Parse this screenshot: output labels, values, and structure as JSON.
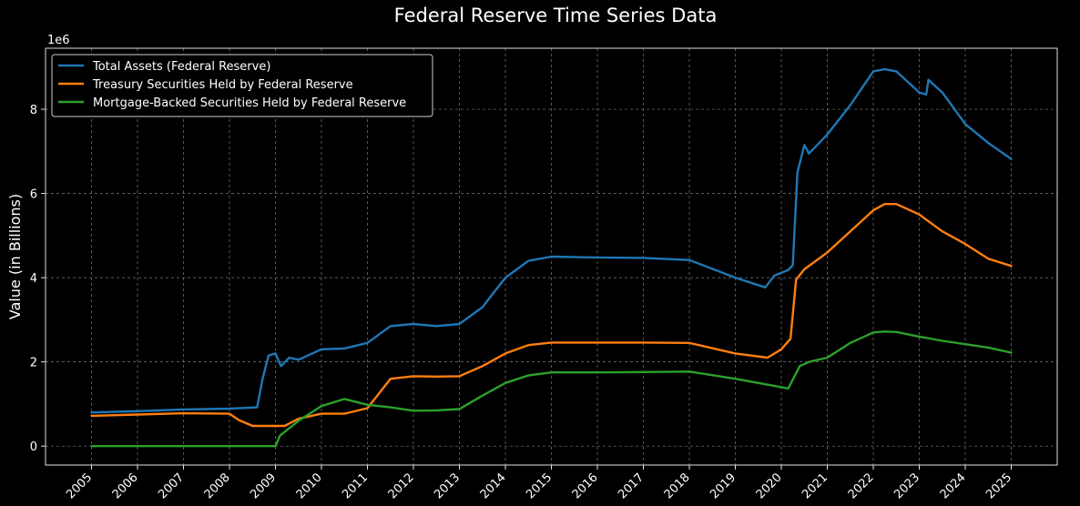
{
  "chart_data": {
    "type": "line",
    "title": "Federal Reserve Time Series Data",
    "xlabel": "",
    "ylabel": "Value (in Billions)",
    "y_multiplier_label": "1e6",
    "xlim": [
      2004.0,
      2026.0
    ],
    "ylim": [
      -0.45,
      9.45
    ],
    "x_ticks": [
      "2005",
      "2006",
      "2007",
      "2008",
      "2009",
      "2010",
      "2011",
      "2012",
      "2013",
      "2014",
      "2015",
      "2016",
      "2017",
      "2018",
      "2019",
      "2020",
      "2021",
      "2022",
      "2023",
      "2024",
      "2025"
    ],
    "y_ticks": [
      0,
      2,
      4,
      6,
      8
    ],
    "y_tick_labels": [
      "0",
      "2",
      "4",
      "6",
      "8"
    ],
    "grid": true,
    "legend_position": "top-left",
    "series": [
      {
        "name": "Total Assets (Federal Reserve)",
        "color": "#1f77b4",
        "points": [
          [
            2005.0,
            0.8
          ],
          [
            2006.0,
            0.83
          ],
          [
            2007.0,
            0.87
          ],
          [
            2008.0,
            0.89
          ],
          [
            2008.6,
            0.92
          ],
          [
            2008.72,
            1.6
          ],
          [
            2008.85,
            2.15
          ],
          [
            2009.0,
            2.2
          ],
          [
            2009.12,
            1.9
          ],
          [
            2009.3,
            2.1
          ],
          [
            2009.5,
            2.05
          ],
          [
            2009.7,
            2.15
          ],
          [
            2010.0,
            2.3
          ],
          [
            2010.5,
            2.32
          ],
          [
            2011.0,
            2.45
          ],
          [
            2011.5,
            2.85
          ],
          [
            2012.0,
            2.9
          ],
          [
            2012.5,
            2.85
          ],
          [
            2013.0,
            2.9
          ],
          [
            2013.5,
            3.3
          ],
          [
            2014.0,
            4.0
          ],
          [
            2014.5,
            4.4
          ],
          [
            2015.0,
            4.5
          ],
          [
            2016.0,
            4.48
          ],
          [
            2017.0,
            4.47
          ],
          [
            2018.0,
            4.42
          ],
          [
            2019.0,
            4.0
          ],
          [
            2019.65,
            3.77
          ],
          [
            2019.85,
            4.05
          ],
          [
            2020.15,
            4.18
          ],
          [
            2020.25,
            4.3
          ],
          [
            2020.35,
            6.5
          ],
          [
            2020.5,
            7.15
          ],
          [
            2020.6,
            6.95
          ],
          [
            2021.0,
            7.4
          ],
          [
            2021.5,
            8.1
          ],
          [
            2022.0,
            8.9
          ],
          [
            2022.25,
            8.95
          ],
          [
            2022.5,
            8.9
          ],
          [
            2023.0,
            8.4
          ],
          [
            2023.15,
            8.35
          ],
          [
            2023.2,
            8.7
          ],
          [
            2023.5,
            8.4
          ],
          [
            2024.0,
            7.65
          ],
          [
            2024.5,
            7.2
          ],
          [
            2025.0,
            6.82
          ]
        ]
      },
      {
        "name": "Treasury Securities Held by Federal Reserve",
        "color": "#ff7f0e",
        "points": [
          [
            2005.0,
            0.72
          ],
          [
            2006.0,
            0.75
          ],
          [
            2007.0,
            0.78
          ],
          [
            2008.0,
            0.77
          ],
          [
            2008.2,
            0.62
          ],
          [
            2008.5,
            0.48
          ],
          [
            2009.2,
            0.48
          ],
          [
            2009.5,
            0.65
          ],
          [
            2010.0,
            0.77
          ],
          [
            2010.5,
            0.77
          ],
          [
            2011.0,
            0.9
          ],
          [
            2011.5,
            1.6
          ],
          [
            2012.0,
            1.66
          ],
          [
            2012.5,
            1.65
          ],
          [
            2013.0,
            1.66
          ],
          [
            2013.5,
            1.9
          ],
          [
            2014.0,
            2.2
          ],
          [
            2014.5,
            2.4
          ],
          [
            2015.0,
            2.46
          ],
          [
            2016.0,
            2.46
          ],
          [
            2017.0,
            2.46
          ],
          [
            2018.0,
            2.45
          ],
          [
            2019.0,
            2.2
          ],
          [
            2019.7,
            2.1
          ],
          [
            2020.0,
            2.3
          ],
          [
            2020.2,
            2.55
          ],
          [
            2020.32,
            3.95
          ],
          [
            2020.5,
            4.2
          ],
          [
            2021.0,
            4.6
          ],
          [
            2021.5,
            5.1
          ],
          [
            2022.0,
            5.6
          ],
          [
            2022.25,
            5.75
          ],
          [
            2022.5,
            5.75
          ],
          [
            2023.0,
            5.5
          ],
          [
            2023.5,
            5.1
          ],
          [
            2024.0,
            4.8
          ],
          [
            2024.5,
            4.45
          ],
          [
            2025.0,
            4.28
          ]
        ]
      },
      {
        "name": "Mortgage-Backed Securities Held by Federal Reserve",
        "color": "#2ca02c",
        "points": [
          [
            2005.0,
            0.0
          ],
          [
            2006.0,
            0.0
          ],
          [
            2007.0,
            0.0
          ],
          [
            2008.0,
            0.0
          ],
          [
            2009.0,
            0.0
          ],
          [
            2009.1,
            0.25
          ],
          [
            2009.5,
            0.6
          ],
          [
            2010.0,
            0.95
          ],
          [
            2010.5,
            1.12
          ],
          [
            2011.0,
            0.98
          ],
          [
            2011.5,
            0.92
          ],
          [
            2012.0,
            0.84
          ],
          [
            2012.5,
            0.85
          ],
          [
            2013.0,
            0.88
          ],
          [
            2013.5,
            1.2
          ],
          [
            2014.0,
            1.5
          ],
          [
            2014.5,
            1.68
          ],
          [
            2015.0,
            1.75
          ],
          [
            2016.0,
            1.75
          ],
          [
            2017.0,
            1.76
          ],
          [
            2018.0,
            1.77
          ],
          [
            2019.0,
            1.6
          ],
          [
            2019.5,
            1.5
          ],
          [
            2020.15,
            1.37
          ],
          [
            2020.4,
            1.9
          ],
          [
            2020.6,
            2.0
          ],
          [
            2021.0,
            2.1
          ],
          [
            2021.5,
            2.45
          ],
          [
            2022.0,
            2.7
          ],
          [
            2022.25,
            2.72
          ],
          [
            2022.5,
            2.71
          ],
          [
            2023.0,
            2.6
          ],
          [
            2023.5,
            2.5
          ],
          [
            2024.0,
            2.42
          ],
          [
            2024.5,
            2.34
          ],
          [
            2025.0,
            2.22
          ]
        ]
      }
    ]
  }
}
